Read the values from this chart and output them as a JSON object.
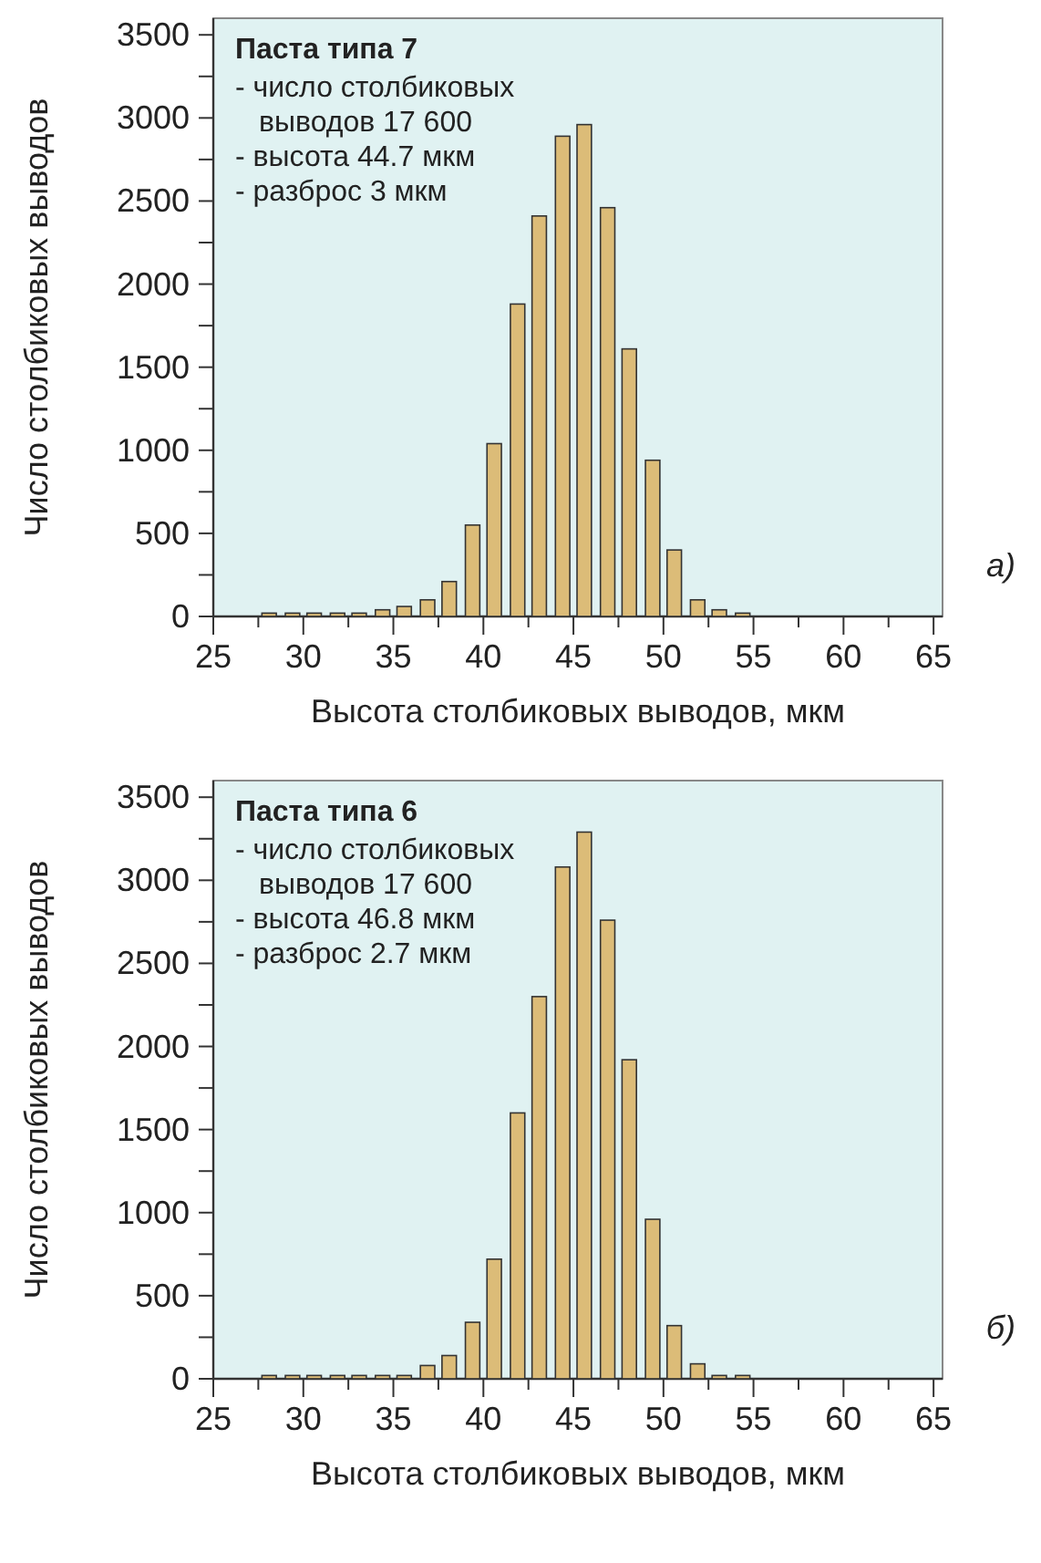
{
  "chart_data": [
    {
      "type": "bar",
      "title": "Паста типа 7",
      "xlabel": "Высота столбиковых выводов, мкм",
      "ylabel": "Число столбиковых выводов",
      "color": "#dcbc78",
      "x": [
        28.1,
        29.4,
        30.6,
        31.9,
        33.1,
        34.4,
        35.6,
        36.9,
        38.1,
        39.4,
        40.6,
        41.9,
        43.1,
        44.4,
        45.6,
        46.9,
        48.1,
        49.4,
        50.6,
        51.9,
        53.1,
        54.4
      ],
      "values": [
        20,
        20,
        20,
        20,
        20,
        40,
        60,
        100,
        210,
        550,
        1040,
        1880,
        2410,
        2890,
        2960,
        2460,
        1610,
        940,
        400,
        100,
        40,
        20
      ],
      "xlim": [
        25,
        65.5
      ],
      "xticks": [
        25,
        {
          "value": 27.5,
          "label": null
        },
        30,
        {
          "value": 32.5,
          "label": null
        },
        35,
        {
          "value": 37.5,
          "label": null
        },
        40,
        {
          "value": 42.5,
          "label": null
        },
        45,
        {
          "value": 47.5,
          "label": null
        },
        50,
        {
          "value": 52.5,
          "label": null
        },
        55,
        {
          "value": 57.5,
          "label": null
        },
        60,
        {
          "value": 62.5,
          "label": null
        },
        65
      ],
      "ylim": [
        0,
        3600
      ],
      "yticks": [
        0,
        {
          "value": 250,
          "label": null
        },
        500,
        {
          "value": 750,
          "label": null
        },
        1000,
        {
          "value": 1250,
          "label": null
        },
        1500,
        {
          "value": 1750,
          "label": null
        },
        2000,
        {
          "value": 2250,
          "label": null
        },
        2500,
        {
          "value": 2750,
          "label": null
        },
        3000,
        {
          "value": 3250,
          "label": null
        },
        3500
      ],
      "annotations": [
        "- число столбиковых выводов 17 600",
        "- высота 44.7 мкм",
        "- разброс 3 мкм",
        "а)"
      ]
    },
    {
      "type": "bar",
      "title": "Паста типа 6",
      "xlabel": "Высота столбиковых выводов, мкм",
      "ylabel": "Число столбиковых выводов",
      "color": "#dcbc78",
      "x": [
        28.1,
        29.4,
        30.6,
        31.9,
        33.1,
        34.4,
        35.6,
        36.9,
        38.1,
        39.4,
        40.6,
        41.9,
        43.1,
        44.4,
        45.6,
        46.9,
        48.1,
        49.4,
        50.6,
        51.9,
        53.1,
        54.4
      ],
      "values": [
        20,
        20,
        20,
        20,
        20,
        20,
        20,
        80,
        140,
        340,
        720,
        1600,
        2300,
        3080,
        3290,
        2760,
        1920,
        960,
        320,
        90,
        20,
        20
      ],
      "xlim": [
        25,
        65.5
      ],
      "xticks": [
        25,
        {
          "value": 27.5,
          "label": null
        },
        30,
        {
          "value": 32.5,
          "label": null
        },
        35,
        {
          "value": 37.5,
          "label": null
        },
        40,
        {
          "value": 42.5,
          "label": null
        },
        45,
        {
          "value": 47.5,
          "label": null
        },
        50,
        {
          "value": 52.5,
          "label": null
        },
        55,
        {
          "value": 57.5,
          "label": null
        },
        60,
        {
          "value": 62.5,
          "label": null
        },
        65
      ],
      "ylim": [
        0,
        3600
      ],
      "yticks": [
        0,
        {
          "value": 250,
          "label": null
        },
        500,
        {
          "value": 750,
          "label": null
        },
        1000,
        {
          "value": 1250,
          "label": null
        },
        1500,
        {
          "value": 1750,
          "label": null
        },
        2000,
        {
          "value": 2250,
          "label": null
        },
        2500,
        {
          "value": 2750,
          "label": null
        },
        3000,
        {
          "value": 3250,
          "label": null
        },
        3500
      ],
      "annotations": [
        "- число столбиковых выводов 17 600",
        "- высота 46.8 мкм",
        "- разброс 2.7 мкм",
        "б)"
      ]
    }
  ]
}
